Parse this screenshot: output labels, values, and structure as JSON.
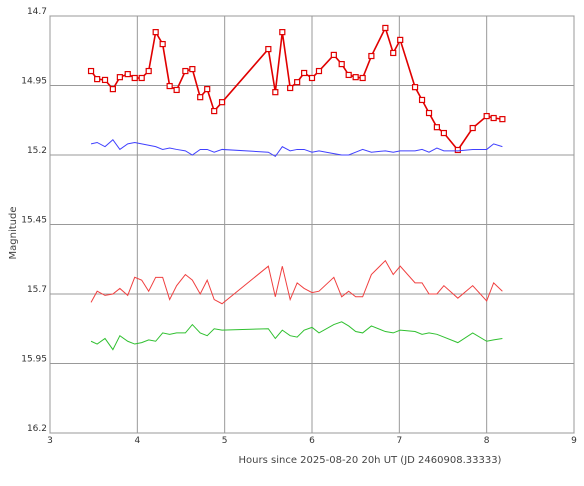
{
  "chart_data": {
    "type": "line",
    "xlabel": "Hours since 2025-08-20 20h UT (JD 2460908.33333)",
    "ylabel": "Magnitude",
    "xlim": [
      3,
      9
    ],
    "xticks": [
      3,
      4,
      5,
      6,
      7,
      8,
      9
    ],
    "ylim": [
      14.7,
      16.2
    ],
    "yticks": [
      14.7,
      14.95,
      15.2,
      15.45,
      15.7,
      15.95,
      16.2
    ],
    "y_inverted": true,
    "grid": true,
    "x": [
      3.47,
      3.54,
      3.63,
      3.72,
      3.8,
      3.89,
      3.97,
      4.05,
      4.13,
      4.21,
      4.29,
      4.37,
      4.45,
      4.55,
      4.63,
      4.72,
      4.8,
      4.88,
      4.97,
      5.5,
      5.58,
      5.66,
      5.75,
      5.83,
      5.91,
      6.0,
      6.08,
      6.25,
      6.34,
      6.42,
      6.5,
      6.58,
      6.68,
      6.84,
      6.93,
      7.01,
      7.18,
      7.26,
      7.34,
      7.43,
      7.51,
      7.67,
      7.84,
      8.0,
      8.08,
      8.18
    ],
    "series": [
      {
        "color": "#e00000",
        "line_width": 1.6,
        "marker": "square",
        "values": [
          14.898,
          14.927,
          14.93,
          14.963,
          14.92,
          14.909,
          14.923,
          14.923,
          14.898,
          14.758,
          14.801,
          14.952,
          14.966,
          14.898,
          14.891,
          14.992,
          14.963,
          15.042,
          15.01,
          14.819,
          14.974,
          14.758,
          14.959,
          14.938,
          14.905,
          14.923,
          14.898,
          14.84,
          14.873,
          14.912,
          14.92,
          14.923,
          14.844,
          14.743,
          14.833,
          14.786,
          14.956,
          15.002,
          15.049,
          15.1,
          15.121,
          15.182,
          15.103,
          15.06,
          15.067,
          15.071
        ]
      },
      {
        "color": "#4040ff",
        "line_width": 1,
        "values": [
          15.16,
          15.155,
          15.17,
          15.145,
          15.18,
          15.16,
          15.155,
          15.16,
          15.165,
          15.17,
          15.18,
          15.175,
          15.18,
          15.185,
          15.2,
          15.18,
          15.18,
          15.19,
          15.18,
          15.19,
          15.205,
          15.17,
          15.185,
          15.18,
          15.18,
          15.19,
          15.185,
          15.195,
          15.2,
          15.2,
          15.19,
          15.18,
          15.19,
          15.185,
          15.19,
          15.185,
          15.185,
          15.18,
          15.19,
          15.175,
          15.185,
          15.185,
          15.18,
          15.18,
          15.16,
          15.17
        ]
      },
      {
        "color": "#f04040",
        "line_width": 1,
        "values": [
          15.73,
          15.69,
          15.705,
          15.7,
          15.68,
          15.705,
          15.64,
          15.65,
          15.69,
          15.64,
          15.64,
          15.72,
          15.67,
          15.63,
          15.65,
          15.7,
          15.65,
          15.72,
          15.735,
          15.6,
          15.71,
          15.6,
          15.72,
          15.66,
          15.68,
          15.695,
          15.69,
          15.64,
          15.71,
          15.69,
          15.71,
          15.71,
          15.63,
          15.58,
          15.63,
          15.6,
          15.66,
          15.66,
          15.7,
          15.7,
          15.67,
          15.715,
          15.67,
          15.725,
          15.66,
          15.69
        ]
      },
      {
        "color": "#30c030",
        "line_width": 1,
        "values": [
          15.87,
          15.88,
          15.86,
          15.9,
          15.85,
          15.87,
          15.88,
          15.875,
          15.865,
          15.87,
          15.84,
          15.845,
          15.84,
          15.84,
          15.81,
          15.84,
          15.85,
          15.825,
          15.83,
          15.825,
          15.86,
          15.83,
          15.85,
          15.855,
          15.83,
          15.82,
          15.84,
          15.81,
          15.8,
          15.815,
          15.835,
          15.84,
          15.815,
          15.835,
          15.84,
          15.83,
          15.835,
          15.845,
          15.84,
          15.845,
          15.855,
          15.875,
          15.84,
          15.87,
          15.865,
          15.86
        ]
      }
    ]
  }
}
